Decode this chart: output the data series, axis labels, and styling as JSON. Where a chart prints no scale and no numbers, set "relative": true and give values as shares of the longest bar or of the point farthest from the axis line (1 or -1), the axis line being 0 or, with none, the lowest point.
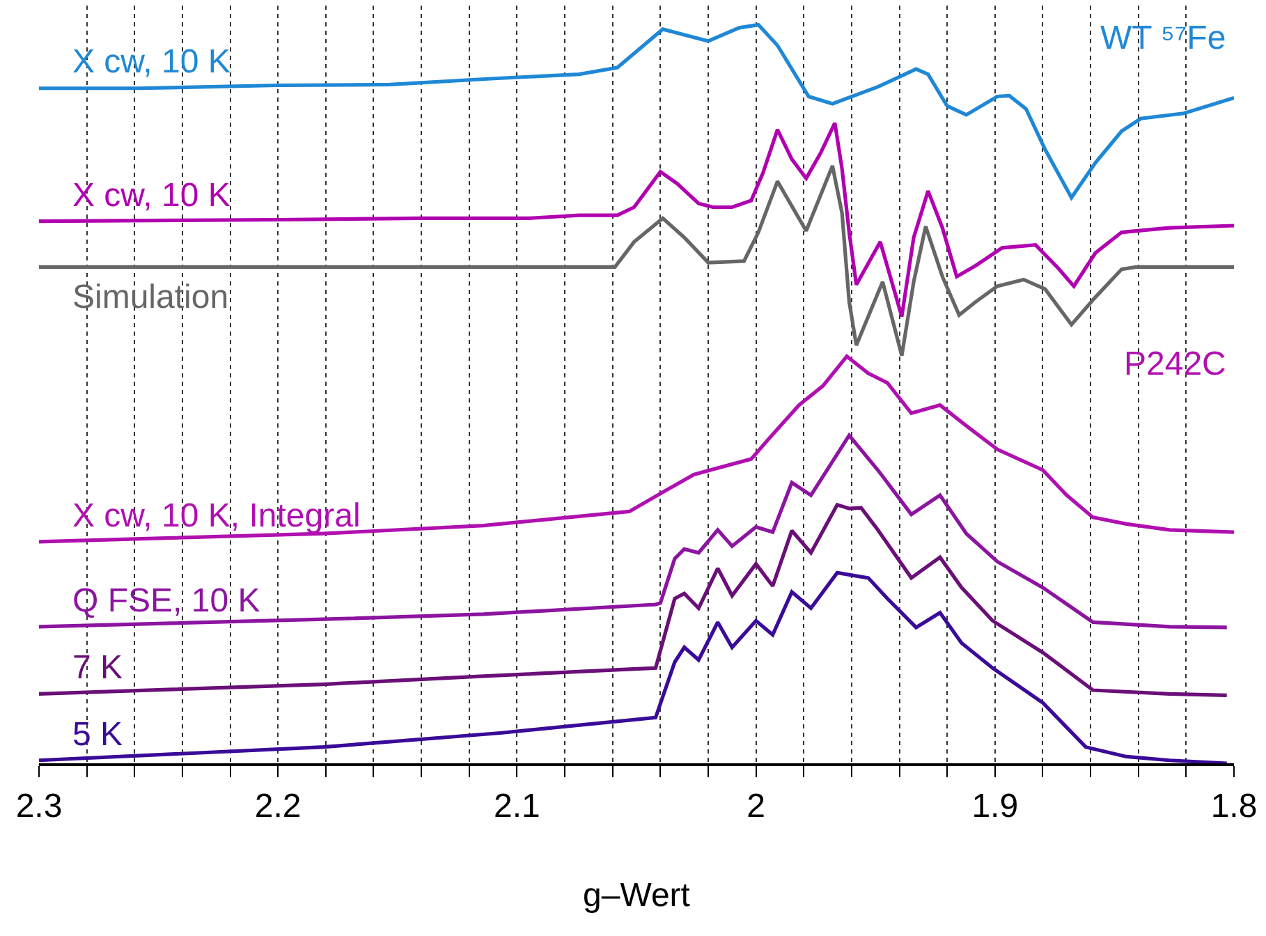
{
  "chart_data": {
    "type": "line",
    "relative": true,
    "xlabel": "g–Wert",
    "xlim": [
      2.3,
      1.8
    ],
    "xticks": [
      2.3,
      {
        "value": 2.28,
        "label": null
      },
      {
        "value": 2.26,
        "label": null
      },
      {
        "value": 2.24,
        "label": null
      },
      {
        "value": 2.22,
        "label": null
      },
      2.2,
      {
        "value": 2.18,
        "label": null
      },
      {
        "value": 2.16,
        "label": null
      },
      {
        "value": 2.14,
        "label": null
      },
      {
        "value": 2.12,
        "label": null
      },
      2.1,
      {
        "value": 2.08,
        "label": null
      },
      {
        "value": 2.06,
        "label": null
      },
      {
        "value": 2.04,
        "label": null
      },
      {
        "value": 2.02,
        "label": null
      },
      2,
      {
        "value": 1.98,
        "label": null
      },
      {
        "value": 1.96,
        "label": null
      },
      {
        "value": 1.94,
        "label": null
      },
      {
        "value": 1.92,
        "label": null
      },
      1.9,
      {
        "value": 1.88,
        "label": null
      },
      {
        "value": 1.86,
        "label": null
      },
      {
        "value": 1.84,
        "label": null
      },
      {
        "value": 1.82,
        "label": null
      },
      1.8
    ],
    "grid": "x",
    "legend": false,
    "marker": "none",
    "line_style": "solid",
    "annotations": [
      "WT ⁵⁷Fe",
      "P242C"
    ],
    "series": [
      {
        "name": "X cw, 10 K",
        "color": "#1f88d6",
        "x": [
          2.3,
          2.258,
          2.2,
          2.153,
          2.111,
          2.074,
          2.058,
          2.039,
          2.02,
          2.007,
          1.999,
          1.991,
          1.978,
          1.968,
          1.949,
          1.933,
          1.928,
          1.92,
          1.912,
          1.899,
          1.894,
          1.887,
          1.879,
          1.868,
          1.858,
          1.847,
          1.839,
          1.821,
          1.8
        ],
        "values": [
          0.914,
          0.914,
          0.918,
          0.919,
          0.927,
          0.933,
          0.942,
          0.994,
          0.978,
          0.996,
          1.0,
          0.972,
          0.903,
          0.893,
          0.916,
          0.94,
          0.933,
          0.89,
          0.878,
          0.903,
          0.904,
          0.886,
          0.831,
          0.766,
          0.813,
          0.856,
          0.873,
          0.88,
          0.901
        ]
      },
      {
        "name": "X cw, 10 K",
        "color": "#b000b0",
        "x": [
          2.3,
          2.2,
          2.141,
          2.095,
          2.074,
          2.058,
          2.051,
          2.04,
          2.033,
          2.024,
          2.018,
          2.01,
          2.002,
          1.997,
          1.991,
          1.985,
          1.979,
          1.973,
          1.967,
          1.964,
          1.961,
          1.958,
          1.948,
          1.939,
          1.934,
          1.928,
          1.922,
          1.916,
          1.908,
          1.897,
          1.883,
          1.874,
          1.867,
          1.858,
          1.847,
          1.827,
          1.8
        ],
        "values": [
          0.734,
          0.736,
          0.738,
          0.738,
          0.742,
          0.742,
          0.753,
          0.801,
          0.785,
          0.758,
          0.753,
          0.753,
          0.762,
          0.8,
          0.858,
          0.818,
          0.792,
          0.826,
          0.867,
          0.805,
          0.719,
          0.648,
          0.706,
          0.605,
          0.712,
          0.775,
          0.725,
          0.659,
          0.674,
          0.698,
          0.702,
          0.672,
          0.646,
          0.691,
          0.719,
          0.725,
          0.728
        ]
      },
      {
        "name": "Simulation",
        "color": "#666666",
        "x": [
          2.3,
          2.059,
          2.051,
          2.039,
          2.03,
          2.02,
          2.005,
          1.999,
          1.991,
          1.979,
          1.968,
          1.964,
          1.961,
          1.958,
          1.947,
          1.939,
          1.934,
          1.929,
          1.922,
          1.915,
          1.908,
          1.899,
          1.888,
          1.879,
          1.868,
          1.858,
          1.847,
          1.841,
          1.8
        ],
        "values": [
          0.672,
          0.672,
          0.706,
          0.738,
          0.712,
          0.678,
          0.68,
          0.719,
          0.788,
          0.721,
          0.809,
          0.745,
          0.625,
          0.566,
          0.652,
          0.552,
          0.652,
          0.727,
          0.659,
          0.607,
          0.625,
          0.646,
          0.655,
          0.642,
          0.594,
          0.631,
          0.669,
          0.672,
          0.672
        ]
      },
      {
        "name": "X cw, 10 K, Integral",
        "color": "#b010b0",
        "x": [
          2.3,
          2.181,
          2.114,
          2.053,
          2.039,
          2.026,
          2.002,
          1.995,
          1.982,
          1.972,
          1.962,
          1.953,
          1.945,
          1.935,
          1.923,
          1.912,
          1.899,
          1.88,
          1.87,
          1.859,
          1.845,
          1.827,
          1.8
        ],
        "values": [
          0.3,
          0.311,
          0.322,
          0.341,
          0.367,
          0.391,
          0.412,
          0.438,
          0.485,
          0.511,
          0.551,
          0.528,
          0.515,
          0.474,
          0.485,
          0.457,
          0.425,
          0.397,
          0.363,
          0.333,
          0.324,
          0.316,
          0.313
        ]
      },
      {
        "name": "Q FSE, 10 K",
        "color": "#8c14a0",
        "x": [
          2.3,
          2.181,
          2.114,
          2.042,
          2.04,
          2.034,
          2.03,
          2.024,
          2.016,
          2.01,
          2.0,
          1.993,
          1.985,
          1.977,
          1.961,
          1.949,
          1.935,
          1.923,
          1.912,
          1.899,
          1.88,
          1.859,
          1.827,
          1.803
        ],
        "values": [
          0.185,
          0.195,
          0.202,
          0.215,
          0.217,
          0.277,
          0.29,
          0.285,
          0.316,
          0.294,
          0.32,
          0.313,
          0.38,
          0.363,
          0.444,
          0.397,
          0.337,
          0.363,
          0.311,
          0.273,
          0.238,
          0.191,
          0.185,
          0.184
        ]
      },
      {
        "name": "7 K",
        "color": "#6a0f78",
        "x": [
          2.3,
          2.181,
          2.114,
          2.042,
          2.034,
          2.03,
          2.024,
          2.016,
          2.01,
          2.0,
          1.993,
          1.985,
          1.977,
          1.966,
          1.961,
          1.956,
          1.949,
          1.935,
          1.923,
          1.914,
          1.901,
          1.88,
          1.859,
          1.827,
          1.803
        ],
        "values": [
          0.094,
          0.107,
          0.118,
          0.129,
          0.223,
          0.23,
          0.21,
          0.264,
          0.227,
          0.27,
          0.24,
          0.315,
          0.285,
          0.35,
          0.345,
          0.346,
          0.316,
          0.251,
          0.279,
          0.238,
          0.193,
          0.15,
          0.099,
          0.094,
          0.092
        ]
      },
      {
        "name": "5 K",
        "color": "#3a0a98",
        "x": [
          2.3,
          2.181,
          2.107,
          2.042,
          2.034,
          2.03,
          2.024,
          2.016,
          2.01,
          2.0,
          1.993,
          1.985,
          1.977,
          1.966,
          1.953,
          1.945,
          1.933,
          1.923,
          1.914,
          1.901,
          1.88,
          1.862,
          1.845,
          1.827,
          1.803
        ],
        "values": [
          0.004,
          0.022,
          0.041,
          0.062,
          0.137,
          0.157,
          0.14,
          0.191,
          0.157,
          0.193,
          0.174,
          0.232,
          0.21,
          0.258,
          0.251,
          0.223,
          0.184,
          0.204,
          0.163,
          0.129,
          0.082,
          0.022,
          0.009,
          0.004,
          0.0
        ]
      }
    ]
  }
}
